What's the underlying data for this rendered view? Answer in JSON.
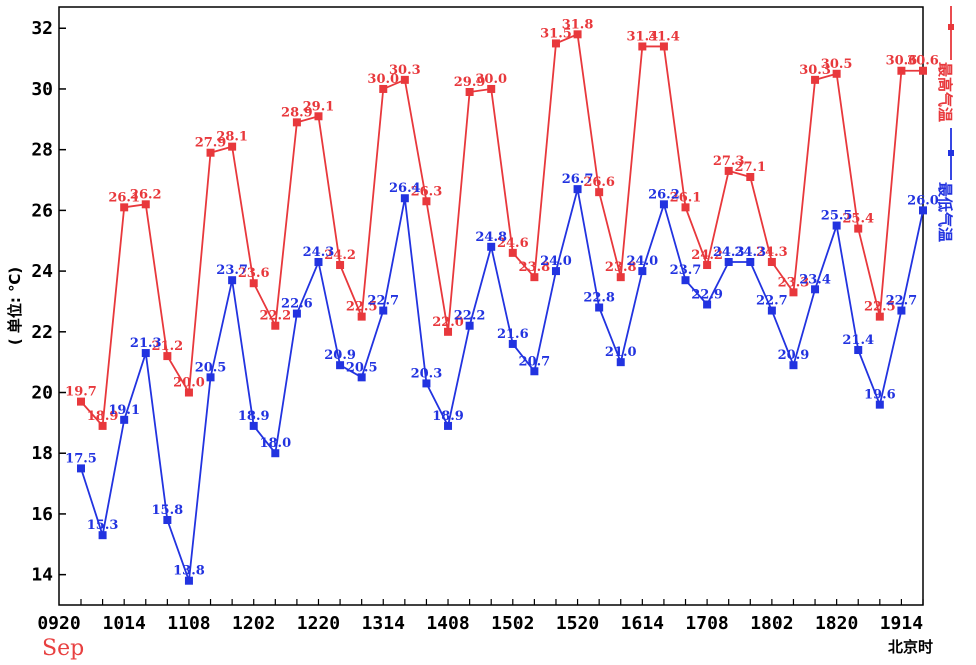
{
  "chart_data": {
    "type": "line",
    "ylabel": "( 单位: ℃)",
    "xlabel": "北京时",
    "month_label": "Sep",
    "ylim": [
      13,
      32.7
    ],
    "yticks": [
      14,
      16,
      18,
      20,
      22,
      24,
      26,
      28,
      30,
      32
    ],
    "x_tick_labels": [
      "0920",
      "1014",
      "1108",
      "1202",
      "1220",
      "1314",
      "1408",
      "1502",
      "1520",
      "1614",
      "1708",
      "1802",
      "1820",
      "1914"
    ],
    "x_tick_positions": [
      0,
      2,
      5,
      8,
      11,
      14,
      17,
      20,
      23,
      26,
      29,
      32,
      35,
      38
    ],
    "x_count": 40,
    "legend_position": "right",
    "series": [
      {
        "name": "最高气温",
        "color": "#e8383c",
        "values": [
          19.7,
          18.9,
          26.1,
          26.2,
          21.2,
          20.0,
          27.9,
          28.1,
          23.6,
          22.2,
          28.9,
          29.1,
          24.2,
          22.5,
          30.0,
          30.3,
          26.3,
          22.0,
          29.9,
          30.0,
          24.6,
          23.8,
          31.5,
          31.8,
          26.6,
          23.8,
          31.4,
          31.4,
          26.1,
          24.2,
          27.3,
          27.1,
          24.3,
          23.3,
          30.3,
          30.5,
          25.4,
          22.5,
          30.6,
          30.6
        ],
        "labels": [
          "19.7",
          "18.9",
          "26.1",
          "26.2",
          "21.2",
          "20.0",
          "27.9",
          "28.1",
          "23.6",
          "22.2",
          "28.9",
          "29.1",
          "24.2",
          "22.5",
          "30.0",
          "30.3",
          "26.3",
          "22.0",
          "29.9",
          "30.0",
          "24.6",
          "23.8",
          "31.5",
          "31.8",
          "26.6",
          "23.8",
          "31.4",
          "31.4",
          "26.1",
          "24.2",
          "27.3",
          "27.1",
          "24.3",
          "23.3",
          "30.3",
          "30.5",
          "25.4",
          "22.5",
          "30.6",
          "30.6"
        ]
      },
      {
        "name": "最低气温",
        "color": "#2233e0",
        "values": [
          17.5,
          15.3,
          19.1,
          21.3,
          15.8,
          13.8,
          20.5,
          23.7,
          18.9,
          18.0,
          22.6,
          24.3,
          20.9,
          20.5,
          22.7,
          26.4,
          20.3,
          18.9,
          22.2,
          24.8,
          21.6,
          20.7,
          24.0,
          26.7,
          22.8,
          21.0,
          24.0,
          26.2,
          23.7,
          22.9,
          24.3,
          24.3,
          22.7,
          20.9,
          23.4,
          25.5,
          21.4,
          19.6,
          22.7,
          26.0
        ],
        "labels": [
          "17.5",
          "15.3",
          "19.1",
          "21.3",
          "15.8",
          "13.8",
          "20.5",
          "23.7",
          "18.9",
          "18.0",
          "22.6",
          "24.3",
          "20.9",
          "20.5",
          "22.7",
          "26.4",
          "20.3",
          "18.9",
          "22.2",
          "24.8",
          "21.6",
          "20.7",
          "24.0",
          "26.7",
          "22.8",
          "21.0",
          "24.0",
          "26.2",
          "23.7",
          "22.9",
          "24.3",
          "24.3",
          "22.7",
          "20.9",
          "23.4",
          "25.5",
          "21.4",
          "19.6",
          "22.7",
          "26.0"
        ]
      }
    ]
  }
}
